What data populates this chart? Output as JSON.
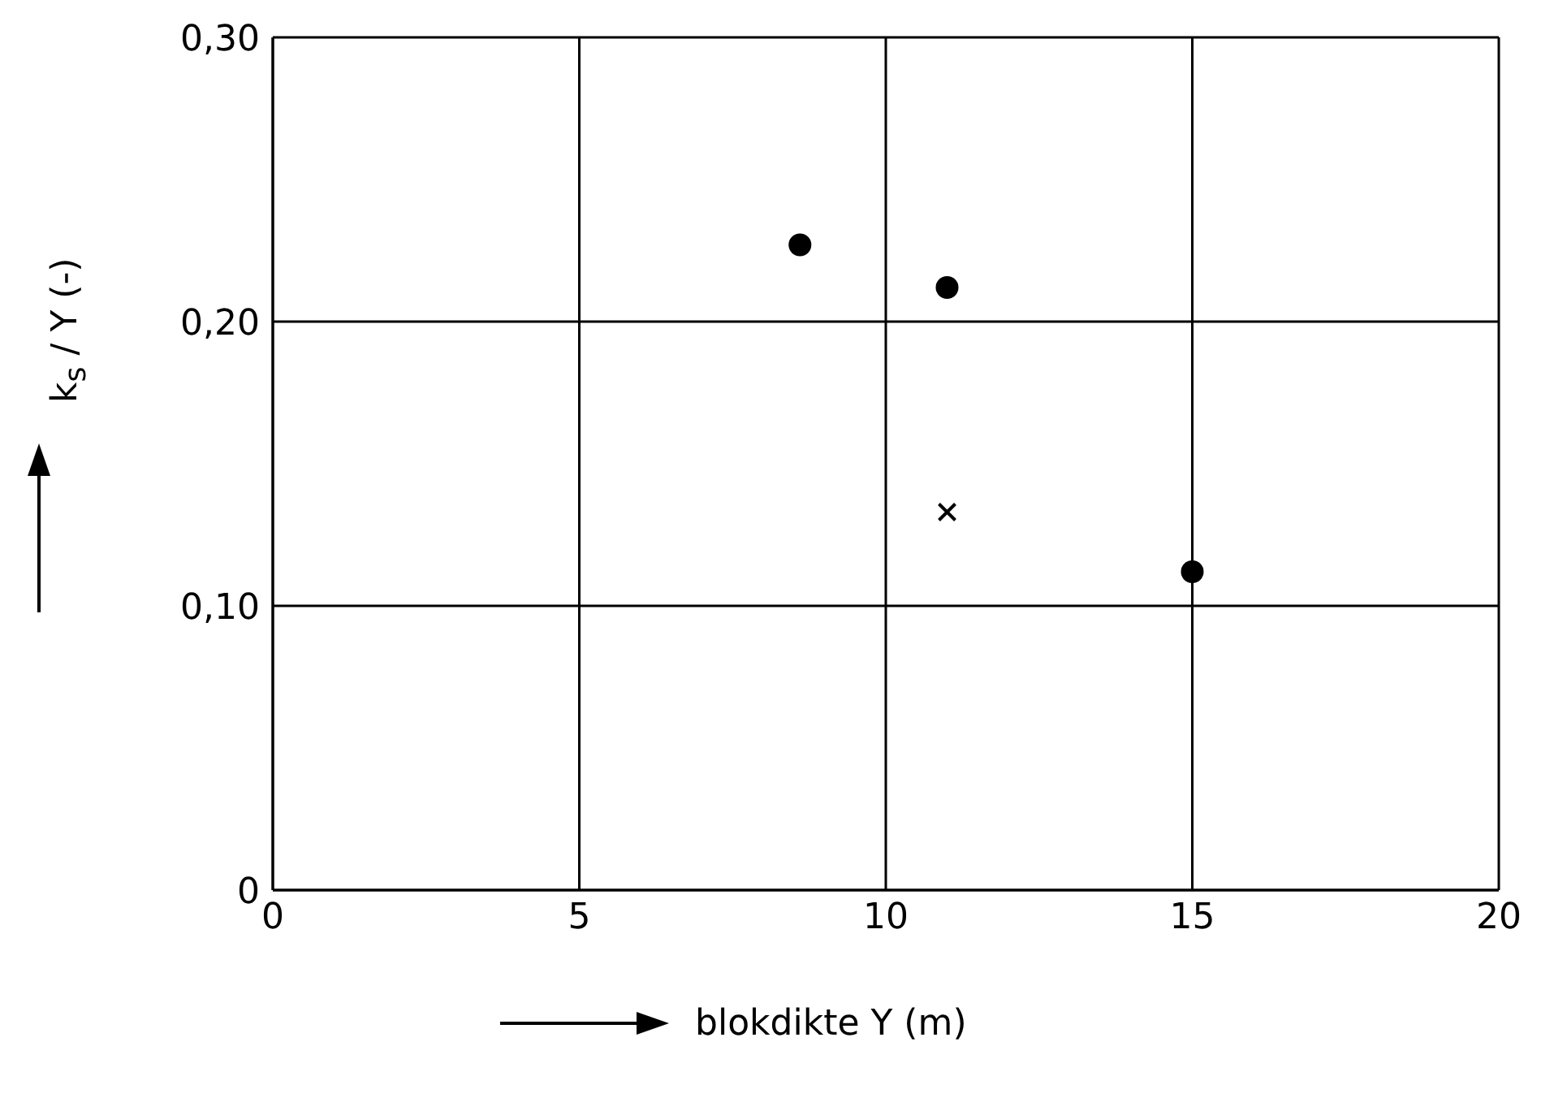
{
  "chart_data": {
    "type": "scatter",
    "xlabel": "blokdikte Y (m)",
    "ylabel": "k$_{s}$ / Y (-)",
    "xlim": [
      0,
      20
    ],
    "xticks": [
      0,
      5,
      10,
      15,
      20
    ],
    "ylim": [
      0,
      0.3
    ],
    "yticks": [
      {
        "value": 0,
        "label": "0"
      },
      {
        "value": 0.1,
        "label": "0,10"
      },
      {
        "value": 0.2,
        "label": "0,20"
      },
      {
        "value": 0.3,
        "label": "0,30"
      }
    ],
    "grid": true,
    "series": [
      {
        "color": "#000000",
        "marker": "circle",
        "x": [
          8.6,
          11.0,
          15.0
        ],
        "values": [
          0.227,
          0.212,
          0.112
        ]
      },
      {
        "color": "#000000",
        "marker": "cross",
        "x": [
          11.0
        ],
        "values": [
          0.133
        ]
      }
    ]
  }
}
